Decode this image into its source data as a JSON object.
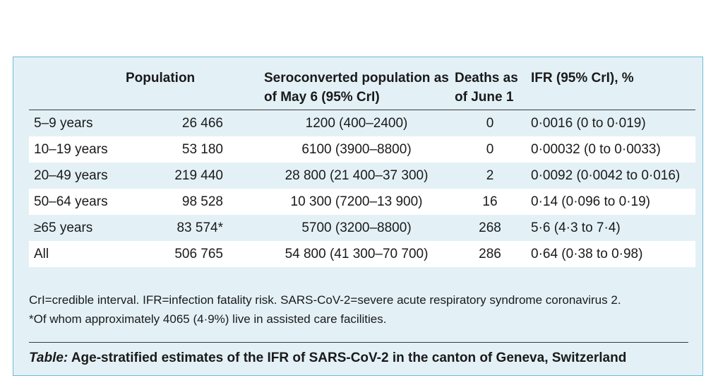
{
  "table": {
    "headers": [
      "",
      "Population",
      "Seroconverted population as of May 6 (95% CrI)",
      "Deaths as of June 1",
      "IFR (95% CrI), %"
    ],
    "rows": [
      [
        "5–9 years",
        "26 466",
        "1200 (400–2400)",
        "0",
        "0·0016 (0 to 0·019)"
      ],
      [
        "10–19 years",
        "53 180",
        "6100 (3900–8800)",
        "0",
        "0·00032 (0 to 0·0033)"
      ],
      [
        "20–49 years",
        "219 440",
        "28 800 (21 400–37 300)",
        "2",
        "0·0092 (0·0042 to 0·016)"
      ],
      [
        "50–64 years",
        "98 528",
        "10 300 (7200–13 900)",
        "16",
        "0·14 (0·096 to 0·19)"
      ],
      [
        "≥65 years",
        "83 574*",
        "5700 (3200–8800)",
        "268",
        "5·6 (4·3 to 7·4)"
      ],
      [
        "All",
        "506 765",
        "54 800 (41 300–70 700)",
        "286",
        "0·64 (0·38 to 0·98)"
      ]
    ]
  },
  "footnote": {
    "line1": "CrI=credible interval. IFR=infection fatality risk. SARS-CoV-2=severe acute respiratory syndrome coronavirus 2.",
    "line2": "*Of whom approximately 4065 (4·9%) live in assisted care facilities."
  },
  "caption": {
    "lead": "Table:",
    "text": " Age-stratified estimates of the IFR of SARS-CoV-2 in the canton of Geneva, Switzerland"
  }
}
